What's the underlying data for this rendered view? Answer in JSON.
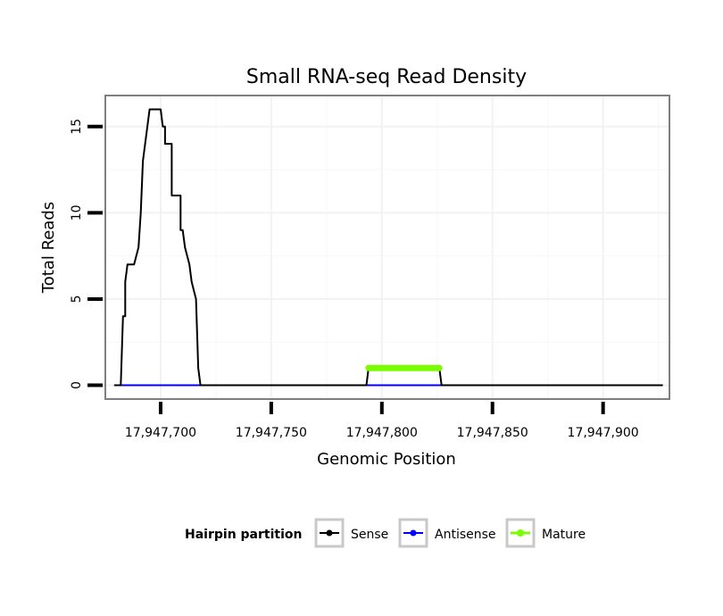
{
  "chart_data": {
    "type": "line",
    "title": "Small RNA-seq Read Density",
    "xlabel": "Genomic Position",
    "ylabel": "Total Reads",
    "xlim": [
      17947675,
      17947930
    ],
    "ylim": [
      -0.8,
      16.8
    ],
    "x_ticks": [
      17947700,
      17947750,
      17947800,
      17947850,
      17947900
    ],
    "x_tick_labels": [
      "17,947,700",
      "17,947,750",
      "17,947,800",
      "17,947,850",
      "17,947,900"
    ],
    "y_ticks": [
      0,
      5,
      10,
      15
    ],
    "y_tick_labels": [
      "0",
      "5",
      "10",
      "15"
    ],
    "grid": true,
    "legend": {
      "title": "Hairpin partition",
      "position": "bottom",
      "entries": [
        "Sense",
        "Antisense",
        "Mature"
      ]
    },
    "series": [
      {
        "name": "Sense",
        "color": "#000000",
        "x": [
          17947679,
          17947682,
          17947683,
          17947683,
          17947684,
          17947684,
          17947685,
          17947686,
          17947688,
          17947688,
          17947690,
          17947691,
          17947692,
          17947694,
          17947695,
          17947697,
          17947698,
          17947700,
          17947700,
          17947701,
          17947701,
          17947702,
          17947702,
          17947704,
          17947705,
          17947705,
          17947708,
          17947709,
          17947709,
          17947710,
          17947711,
          17947711,
          17947713,
          17947714,
          17947716,
          17947716,
          17947717,
          17947718,
          17947720,
          17947720,
          17947721,
          17947722,
          17947793,
          17947794,
          17947794,
          17947826,
          17947826,
          17947827,
          17947927
        ],
        "values": [
          0,
          0,
          4,
          4,
          4,
          6,
          7,
          7,
          7,
          7,
          8,
          10,
          13,
          15,
          16,
          16,
          16,
          16,
          16,
          15,
          15,
          15,
          14,
          14,
          14,
          11,
          11,
          11,
          9,
          9,
          8,
          8,
          7,
          6,
          5,
          5,
          1,
          0,
          0,
          0,
          0,
          0,
          0,
          1,
          1,
          1,
          1,
          0,
          0
        ]
      },
      {
        "name": "Antisense",
        "color": "#0000ff",
        "x": [
          17947679,
          17947722,
          17947793,
          17947827
        ],
        "values": [
          0,
          0,
          0,
          0
        ]
      },
      {
        "name": "Mature",
        "color": "#7cfc00",
        "x": [
          17947794,
          17947826
        ],
        "values": [
          1,
          1
        ]
      }
    ]
  }
}
